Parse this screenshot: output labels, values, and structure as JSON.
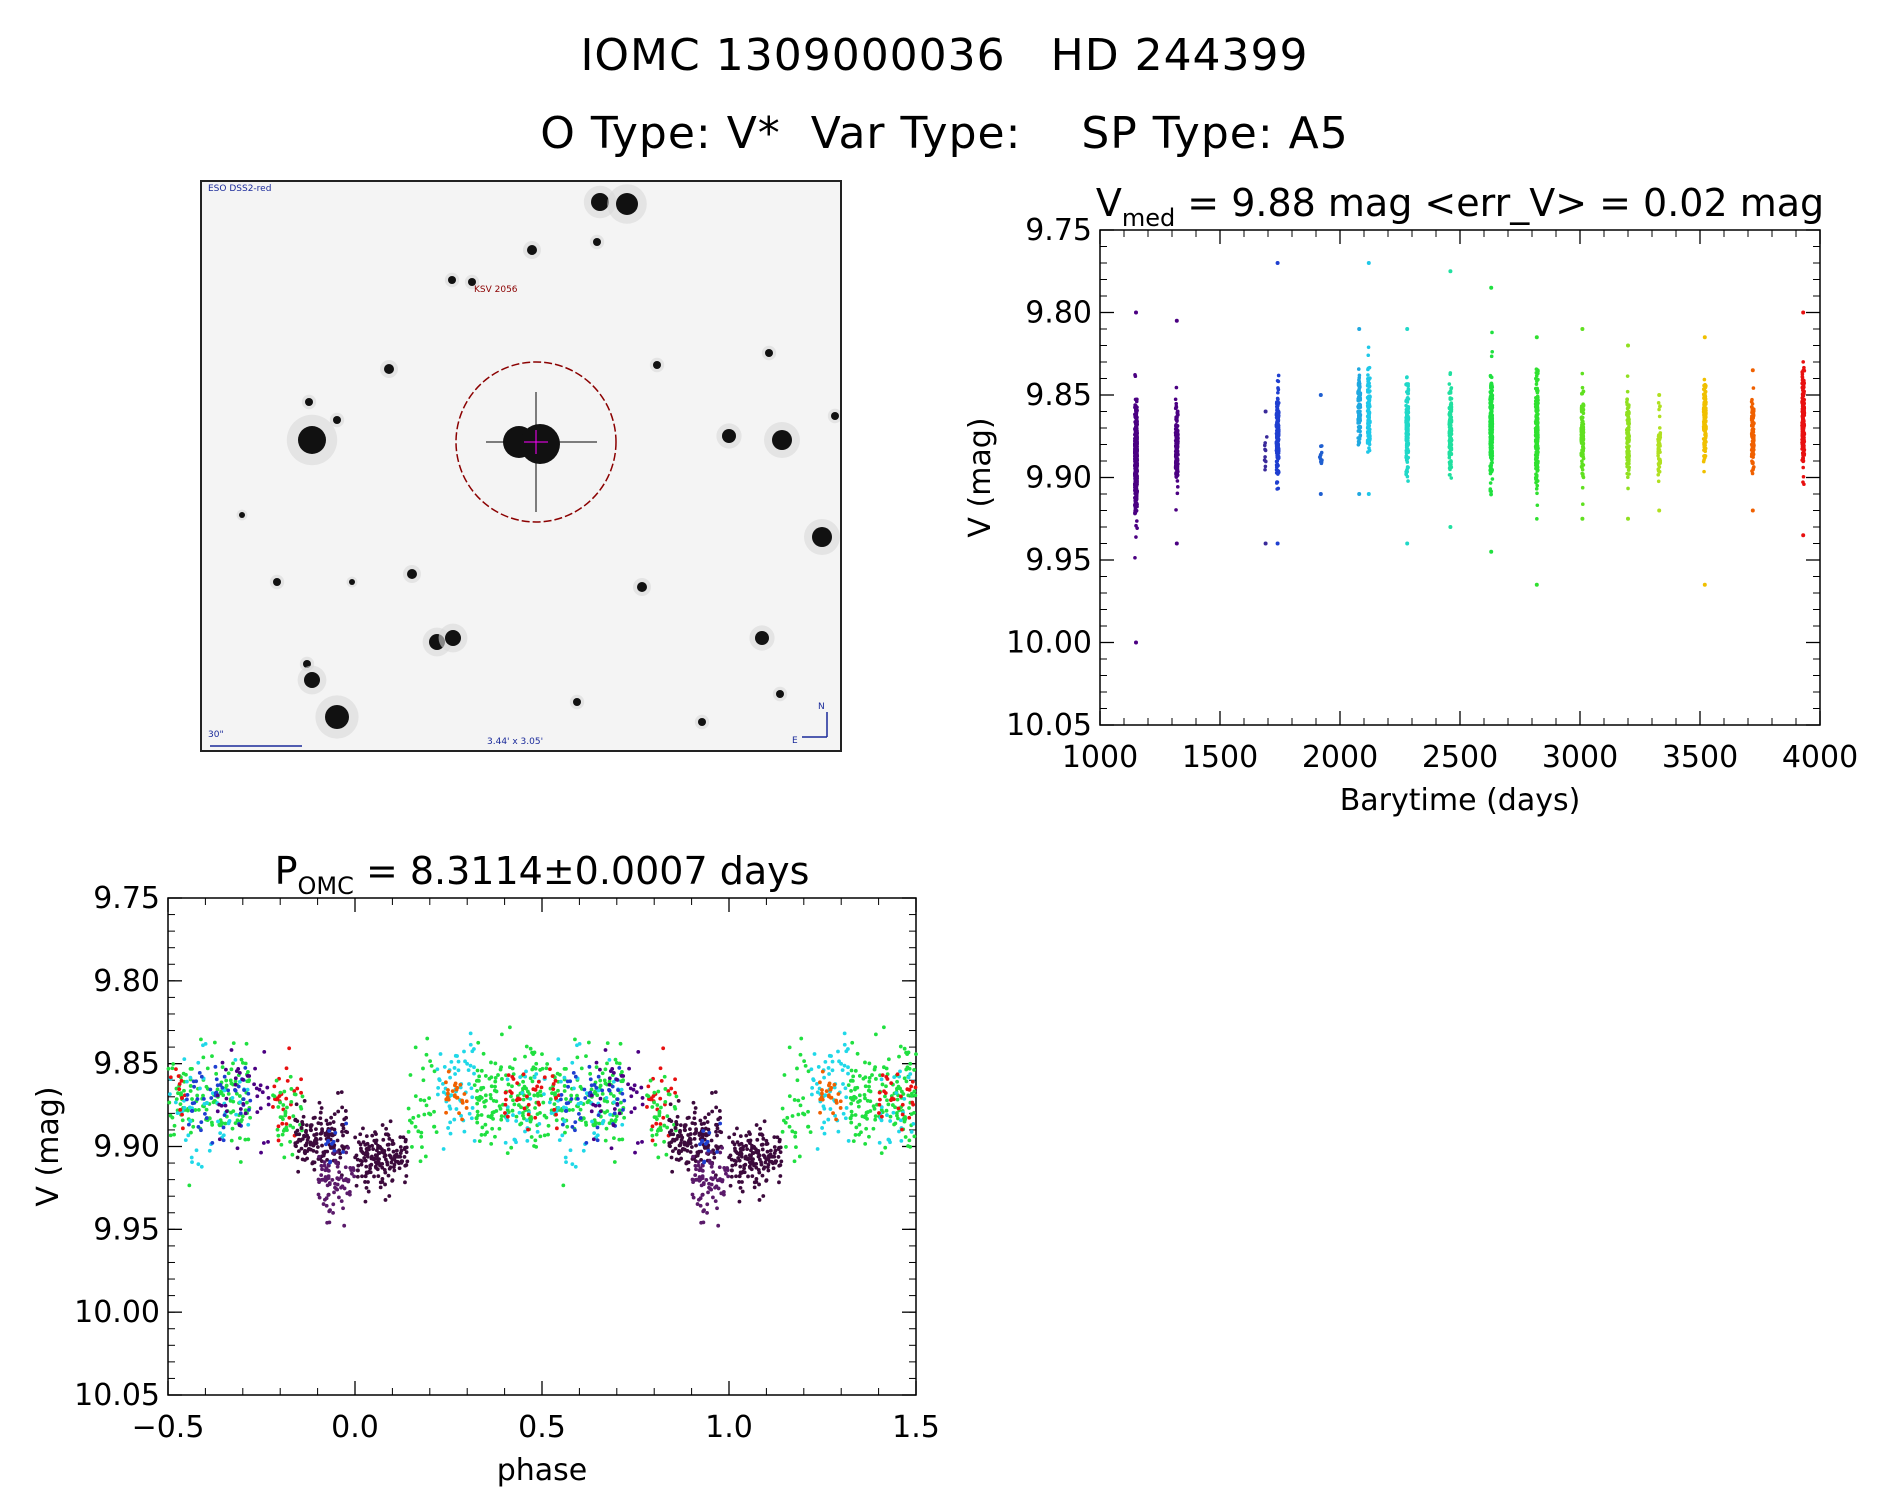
{
  "header": {
    "line1": "IOMC 1309000036   HD 244399",
    "line2": "O Type: V*  Var Type:    SP Type: A5"
  },
  "finder": {
    "survey_label": "ESO DSS2-red",
    "star_label": "KSV 2056",
    "scale_label": "30\"",
    "fov_label": "3.44' x 3.05'",
    "compass_n": "N",
    "compass_e": "E",
    "circle_color": "#8b0000",
    "label_color": "#1a2a9a"
  },
  "chart_data": [
    {
      "id": "light-curve",
      "type": "scatter",
      "title_main": "V",
      "title_sub": "med",
      "title_rest": " = 9.88 mag <err_V> = 0.02 mag",
      "xlabel": "Barytime (days)",
      "ylabel": "V (mag)",
      "xlim": [
        1000,
        4000
      ],
      "ylim": [
        10.05,
        9.75
      ],
      "y_inverted": true,
      "xticks": [
        1000,
        1500,
        2000,
        2500,
        3000,
        3500,
        4000
      ],
      "yticks": [
        9.75,
        9.8,
        9.85,
        9.9,
        9.95,
        10.0,
        10.05
      ],
      "ytick_labels": [
        "9.75",
        "9.80",
        "9.85",
        "9.90",
        "9.95",
        "10.00",
        "10.05"
      ],
      "grid": false,
      "groups": [
        {
          "t": 1150,
          "median": 9.89,
          "spread": 0.028,
          "vmin": 9.8,
          "vmax": 10.0,
          "n": 450,
          "color": "#4b0082"
        },
        {
          "t": 1320,
          "median": 9.88,
          "spread": 0.022,
          "vmin": 9.805,
          "vmax": 9.94,
          "n": 180,
          "color": "#4b0082"
        },
        {
          "t": 1690,
          "median": 9.89,
          "spread": 0.015,
          "vmin": 9.86,
          "vmax": 9.94,
          "n": 10,
          "color": "#3a2a9a"
        },
        {
          "t": 1740,
          "median": 9.87,
          "spread": 0.025,
          "vmin": 9.77,
          "vmax": 9.94,
          "n": 150,
          "color": "#1f3fd0"
        },
        {
          "t": 1920,
          "median": 9.89,
          "spread": 0.012,
          "vmin": 9.85,
          "vmax": 9.91,
          "n": 12,
          "color": "#1f5fd0"
        },
        {
          "t": 2080,
          "median": 9.86,
          "spread": 0.022,
          "vmin": 9.81,
          "vmax": 9.91,
          "n": 90,
          "color": "#1fa8e0"
        },
        {
          "t": 2120,
          "median": 9.86,
          "spread": 0.025,
          "vmin": 9.77,
          "vmax": 9.91,
          "n": 110,
          "color": "#1fc8e8"
        },
        {
          "t": 2280,
          "median": 9.87,
          "spread": 0.025,
          "vmin": 9.81,
          "vmax": 9.94,
          "n": 150,
          "color": "#20d8c8"
        },
        {
          "t": 2460,
          "median": 9.87,
          "spread": 0.025,
          "vmin": 9.775,
          "vmax": 9.93,
          "n": 140,
          "color": "#20e0a0"
        },
        {
          "t": 2630,
          "median": 9.87,
          "spread": 0.028,
          "vmin": 9.785,
          "vmax": 9.945,
          "n": 230,
          "color": "#20e040"
        },
        {
          "t": 2820,
          "median": 9.875,
          "spread": 0.028,
          "vmin": 9.815,
          "vmax": 9.965,
          "n": 200,
          "color": "#30e030"
        },
        {
          "t": 3010,
          "median": 9.875,
          "spread": 0.022,
          "vmin": 9.81,
          "vmax": 9.925,
          "n": 120,
          "color": "#60e020"
        },
        {
          "t": 3200,
          "median": 9.875,
          "spread": 0.022,
          "vmin": 9.82,
          "vmax": 9.925,
          "n": 110,
          "color": "#90e020"
        },
        {
          "t": 3330,
          "median": 9.88,
          "spread": 0.018,
          "vmin": 9.85,
          "vmax": 9.92,
          "n": 50,
          "color": "#b0e020"
        },
        {
          "t": 3520,
          "median": 9.865,
          "spread": 0.02,
          "vmin": 9.815,
          "vmax": 9.965,
          "n": 140,
          "color": "#f0c000"
        },
        {
          "t": 3720,
          "median": 9.875,
          "spread": 0.02,
          "vmin": 9.835,
          "vmax": 9.92,
          "n": 100,
          "color": "#f06000"
        },
        {
          "t": 3930,
          "median": 9.865,
          "spread": 0.025,
          "vmin": 9.8,
          "vmax": 9.935,
          "n": 200,
          "color": "#e81010"
        }
      ]
    },
    {
      "id": "phase-curve",
      "type": "scatter",
      "title_main": "P",
      "title_sub": "OMC",
      "title_rest": " = 8.3114±0.0007 days",
      "xlabel": "phase",
      "ylabel": "V (mag)",
      "xlim": [
        -0.5,
        1.5
      ],
      "ylim": [
        10.05,
        9.75
      ],
      "y_inverted": true,
      "xticks": [
        -0.5,
        0.0,
        0.5,
        1.0,
        1.5
      ],
      "xtick_labels": [
        "−0.5",
        "0.0",
        "0.5",
        "1.0",
        "1.5"
      ],
      "yticks": [
        9.75,
        9.8,
        9.85,
        9.9,
        9.95,
        10.0,
        10.05
      ],
      "ytick_labels": [
        "9.75",
        "9.80",
        "9.85",
        "9.90",
        "9.95",
        "10.00",
        "10.05"
      ],
      "grid": false,
      "phase_segments": [
        {
          "start": 0.0,
          "end": 0.14,
          "median": 9.907,
          "spread": 0.016,
          "n": 170,
          "color": "#3c0a3c"
        },
        {
          "start": 0.14,
          "end": 0.22,
          "median": 9.88,
          "spread": 0.025,
          "n": 35,
          "color": "#20e040"
        },
        {
          "start": 0.22,
          "end": 0.32,
          "median": 9.865,
          "spread": 0.025,
          "n": 60,
          "color": "#20d8e8"
        },
        {
          "start": 0.24,
          "end": 0.3,
          "median": 9.87,
          "spread": 0.012,
          "n": 25,
          "color": "#f06000"
        },
        {
          "start": 0.32,
          "end": 0.72,
          "median": 9.87,
          "spread": 0.025,
          "n": 300,
          "color": "#20e040"
        },
        {
          "start": 0.4,
          "end": 0.72,
          "median": 9.875,
          "spread": 0.025,
          "n": 80,
          "color": "#20d8e8"
        },
        {
          "start": 0.4,
          "end": 0.55,
          "median": 9.87,
          "spread": 0.015,
          "n": 40,
          "color": "#e81010"
        },
        {
          "start": 0.55,
          "end": 0.72,
          "median": 9.87,
          "spread": 0.02,
          "n": 50,
          "color": "#1f3fd0"
        },
        {
          "start": 0.62,
          "end": 0.78,
          "median": 9.87,
          "spread": 0.025,
          "n": 40,
          "color": "#4b0082"
        },
        {
          "start": 0.78,
          "end": 0.86,
          "median": 9.87,
          "spread": 0.025,
          "n": 25,
          "color": "#e81010"
        },
        {
          "start": 0.78,
          "end": 0.86,
          "median": 9.88,
          "spread": 0.025,
          "n": 40,
          "color": "#20e040"
        },
        {
          "start": 0.84,
          "end": 0.98,
          "median": 9.895,
          "spread": 0.015,
          "n": 160,
          "color": "#3c0a3c"
        },
        {
          "start": 0.9,
          "end": 1.0,
          "median": 9.92,
          "spread": 0.018,
          "n": 80,
          "color": "#5a1a6a"
        },
        {
          "start": 0.92,
          "end": 0.98,
          "median": 9.9,
          "spread": 0.01,
          "n": 12,
          "color": "#1f3fd0"
        }
      ]
    }
  ]
}
